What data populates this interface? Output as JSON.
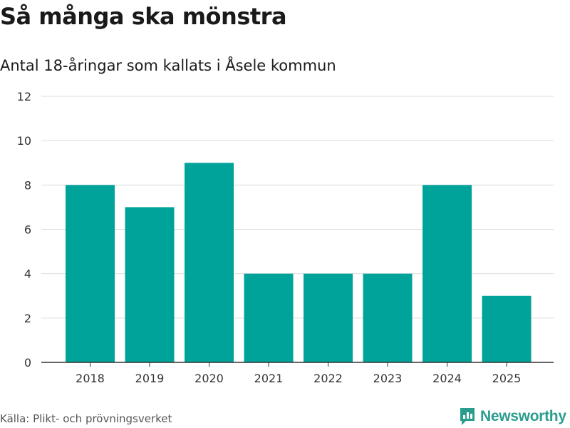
{
  "header": {
    "title": "Så många ska mönstra",
    "subtitle": "Antal 18-åringar som kallats i Åsele kommun"
  },
  "footer": {
    "source": "Källa: Plikt- och prövningsverket",
    "brand": "Newsworthy"
  },
  "colors": {
    "bar": "#00a39a",
    "grid": "#dddddd",
    "axis": "#333333",
    "brand": "#2a9d8f"
  },
  "chart_data": {
    "type": "bar",
    "title": "Så många ska mönstra",
    "subtitle": "Antal 18-åringar som kallats i Åsele kommun",
    "categories": [
      "2018",
      "2019",
      "2020",
      "2021",
      "2022",
      "2023",
      "2024",
      "2025"
    ],
    "values": [
      8,
      7,
      9,
      4,
      4,
      4,
      8,
      3
    ],
    "yticks": [
      0,
      2,
      4,
      6,
      8,
      10,
      12
    ],
    "ylim": [
      0,
      12
    ],
    "xlabel": "",
    "ylabel": "",
    "grid": true,
    "legend": "none"
  }
}
